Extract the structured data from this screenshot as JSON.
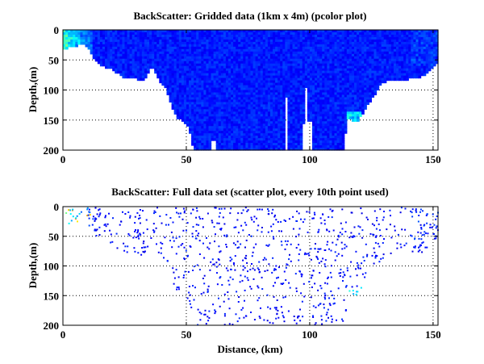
{
  "chart_data": [
    {
      "type": "heatmap",
      "title": "BackScatter: Gridded data (1km x 4m) (pcolor plot)",
      "xlabel": "",
      "ylabel": "Depth,(m)",
      "xlim": [
        0,
        152
      ],
      "ylim": [
        200,
        0
      ],
      "xticks": [
        "0",
        "50",
        "100",
        "150"
      ],
      "yticks": [
        "0",
        "50",
        "100",
        "150",
        "200"
      ],
      "grid": true,
      "colormap": "jet",
      "cell_size": {
        "distance_km": 1,
        "depth_m": 4
      },
      "bottom_profile": {
        "distance_km": [
          0,
          2,
          9,
          10,
          13,
          15,
          20,
          25,
          30,
          33,
          35,
          36,
          38,
          42,
          44,
          46,
          49,
          51,
          53,
          114,
          115,
          117,
          119,
          122,
          126,
          129,
          135,
          140,
          145,
          148,
          150,
          152
        ],
        "depth_m": [
          30,
          30,
          22,
          30,
          52,
          58,
          66,
          80,
          82,
          86,
          66,
          60,
          78,
          100,
          125,
          145,
          152,
          162,
          200,
          200,
          146,
          150,
          155,
          135,
          110,
          88,
          83,
          82,
          78,
          70,
          62,
          52
        ]
      },
      "gaps": [
        {
          "distance_km": [
            60,
            62
          ],
          "from_depth_m": 184
        },
        {
          "distance_km": [
            90,
            91
          ],
          "from_depth_m": 112
        },
        {
          "distance_km": [
            97,
            99
          ],
          "from_depth_m": 155
        },
        {
          "distance_km": [
            98,
            99
          ],
          "from_depth_m": 95
        },
        {
          "distance_km": [
            99,
            101
          ],
          "from_depth_m": 152
        }
      ],
      "typical_value": 0.15,
      "high_regions": [
        {
          "distance_km": [
            0,
            12
          ],
          "depth_m": [
            0,
            50
          ],
          "value": 0.45
        },
        {
          "distance_km": [
            115,
            121
          ],
          "depth_m": [
            135,
            156
          ],
          "value": 0.38
        }
      ]
    },
    {
      "type": "scatter",
      "title": "BackScatter: Full data set (scatter plot, every 10th point used)",
      "xlabel": "Distance, (km)",
      "ylabel": "Depth,(m)",
      "xlim": [
        0,
        152
      ],
      "ylim": [
        200,
        0
      ],
      "xticks": [
        "0",
        "50",
        "100",
        "150"
      ],
      "yticks": [
        "0",
        "50",
        "100",
        "150",
        "200"
      ],
      "grid": true,
      "colormap": "jet",
      "subsample": 10
    }
  ]
}
